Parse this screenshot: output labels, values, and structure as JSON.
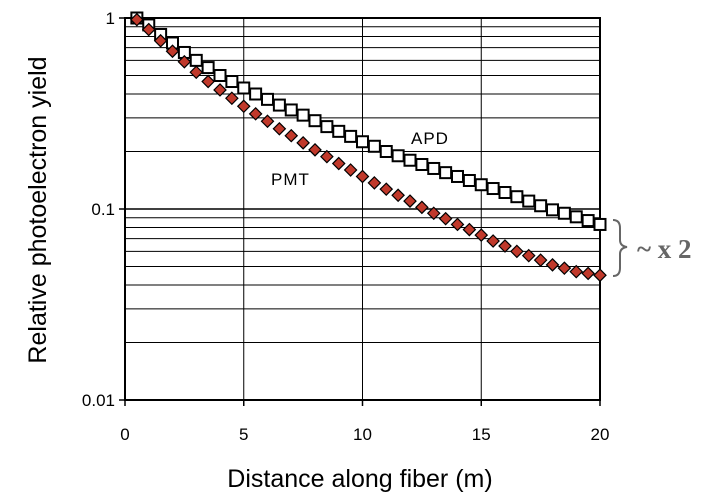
{
  "chart_data": {
    "type": "scatter",
    "xlabel": "Distance along fiber (m)",
    "ylabel": "Relative photoelectron yield",
    "xlim": [
      0,
      20
    ],
    "ylim": [
      0.01,
      1
    ],
    "yscale": "log",
    "grid": "horizontal",
    "x_ticks": [
      "0",
      "5",
      "10",
      "15",
      "20"
    ],
    "y_ticks": [
      "0.01",
      "0.1",
      "1"
    ],
    "series": [
      {
        "name": "APD",
        "marker": "open-square",
        "color": "#000000",
        "x": [
          0.5,
          1.0,
          1.5,
          2.0,
          2.5,
          3.0,
          3.5,
          4.0,
          4.5,
          5.0,
          5.5,
          6.0,
          6.5,
          7.0,
          7.5,
          8.0,
          8.5,
          9.0,
          9.5,
          10.0,
          10.5,
          11.0,
          11.5,
          12.0,
          12.5,
          13.0,
          13.5,
          14.0,
          14.5,
          15.0,
          15.5,
          16.0,
          16.5,
          17.0,
          17.5,
          18.0,
          18.5,
          19.0,
          19.5,
          20.0
        ],
        "values": [
          1.0,
          0.92,
          0.82,
          0.74,
          0.66,
          0.6,
          0.55,
          0.5,
          0.465,
          0.43,
          0.4,
          0.375,
          0.35,
          0.33,
          0.31,
          0.29,
          0.27,
          0.255,
          0.24,
          0.225,
          0.213,
          0.2,
          0.19,
          0.18,
          0.171,
          0.163,
          0.155,
          0.148,
          0.141,
          0.134,
          0.128,
          0.122,
          0.116,
          0.11,
          0.104,
          0.099,
          0.095,
          0.091,
          0.087,
          0.083
        ]
      },
      {
        "name": "PMT",
        "marker": "filled-diamond",
        "color": "#c0392b",
        "x": [
          0.5,
          1.0,
          1.5,
          2.0,
          2.5,
          3.0,
          3.5,
          4.0,
          4.5,
          5.0,
          5.5,
          6.0,
          6.5,
          7.0,
          7.5,
          8.0,
          8.5,
          9.0,
          9.5,
          10.0,
          10.5,
          11.0,
          11.5,
          12.0,
          12.5,
          13.0,
          13.5,
          14.0,
          14.5,
          15.0,
          15.5,
          16.0,
          16.5,
          17.0,
          17.5,
          18.0,
          18.5,
          19.0,
          19.5,
          20.0
        ],
        "values": [
          0.98,
          0.87,
          0.76,
          0.67,
          0.59,
          0.52,
          0.465,
          0.42,
          0.38,
          0.345,
          0.315,
          0.288,
          0.263,
          0.242,
          0.222,
          0.204,
          0.188,
          0.173,
          0.16,
          0.148,
          0.137,
          0.127,
          0.118,
          0.11,
          0.102,
          0.095,
          0.089,
          0.083,
          0.078,
          0.073,
          0.068,
          0.064,
          0.06,
          0.057,
          0.054,
          0.051,
          0.049,
          0.047,
          0.046,
          0.045
        ]
      }
    ],
    "annotations": {
      "apd_label": "APD",
      "pmt_label": "PMT",
      "ratio_label": "~ x 2"
    }
  },
  "colors": {
    "apd_marker": "#000000",
    "pmt_marker": "#c0392b",
    "pmt_edge": "#000000",
    "bracket": "#666666"
  }
}
